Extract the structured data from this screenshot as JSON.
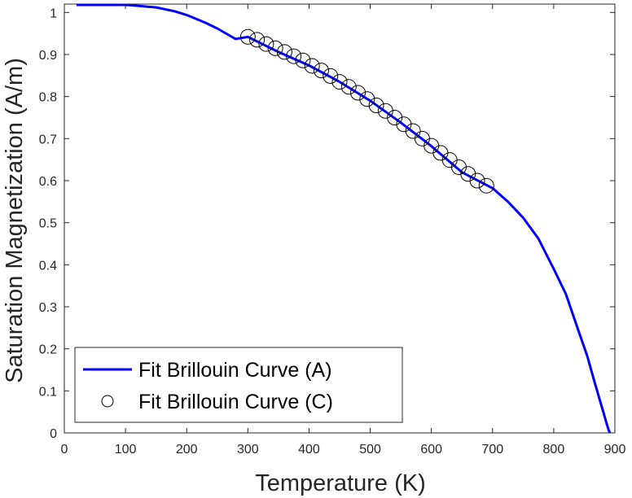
{
  "chart_data": {
    "type": "line",
    "title": "",
    "xlabel": "Temperature (K)",
    "ylabel": "Saturation Magnetization (A/m)",
    "xlim": [
      0,
      900
    ],
    "ylim": [
      0,
      1.02
    ],
    "xticks": [
      0,
      100,
      200,
      300,
      400,
      500,
      600,
      700,
      800,
      900
    ],
    "yticks": [
      0,
      0.1,
      0.2,
      0.3,
      0.4,
      0.5,
      0.6,
      0.7,
      0.8,
      0.9,
      1
    ],
    "xtick_labels": [
      "0",
      "100",
      "200",
      "300",
      "400",
      "500",
      "600",
      "700",
      "800",
      "900"
    ],
    "ytick_labels": [
      "0",
      "0.1",
      "0.2",
      "0.3",
      "0.4",
      "0.5",
      "0.6",
      "0.7",
      "0.8",
      "0.9",
      "1"
    ],
    "grid": false,
    "legend_position": "bottom-left",
    "series": [
      {
        "name": "Fit Brillouin Curve (A)",
        "style": "line",
        "color": "#0000ff",
        "x": [
          20,
          50,
          100,
          120,
          150,
          180,
          200,
          230,
          250,
          280,
          300,
          350,
          400,
          450,
          500,
          550,
          600,
          650,
          700,
          725,
          750,
          775,
          800,
          820,
          840,
          855,
          865,
          875,
          882,
          887,
          890,
          892
        ],
        "y": [
          1.018,
          1.018,
          1.018,
          1.016,
          1.012,
          1.003,
          0.994,
          0.976,
          0.962,
          0.937,
          0.942,
          0.906,
          0.874,
          0.835,
          0.79,
          0.738,
          0.682,
          0.62,
          0.582,
          0.55,
          0.512,
          0.462,
          0.39,
          0.33,
          0.245,
          0.182,
          0.13,
          0.08,
          0.045,
          0.02,
          0.006,
          0.0
        ]
      },
      {
        "name": "Fit Brillouin Curve (C)",
        "style": "markers",
        "marker": "circle",
        "color": "#000000",
        "x": [
          300,
          315,
          330,
          345,
          360,
          375,
          390,
          405,
          420,
          435,
          450,
          465,
          480,
          495,
          510,
          525,
          540,
          555,
          570,
          585,
          600,
          615,
          630,
          645,
          660,
          675,
          690
        ],
        "y": [
          0.942,
          0.935,
          0.925,
          0.915,
          0.906,
          0.896,
          0.886,
          0.873,
          0.862,
          0.849,
          0.835,
          0.823,
          0.809,
          0.794,
          0.779,
          0.766,
          0.75,
          0.734,
          0.718,
          0.7,
          0.683,
          0.666,
          0.649,
          0.632,
          0.616,
          0.6,
          0.588
        ]
      }
    ]
  }
}
